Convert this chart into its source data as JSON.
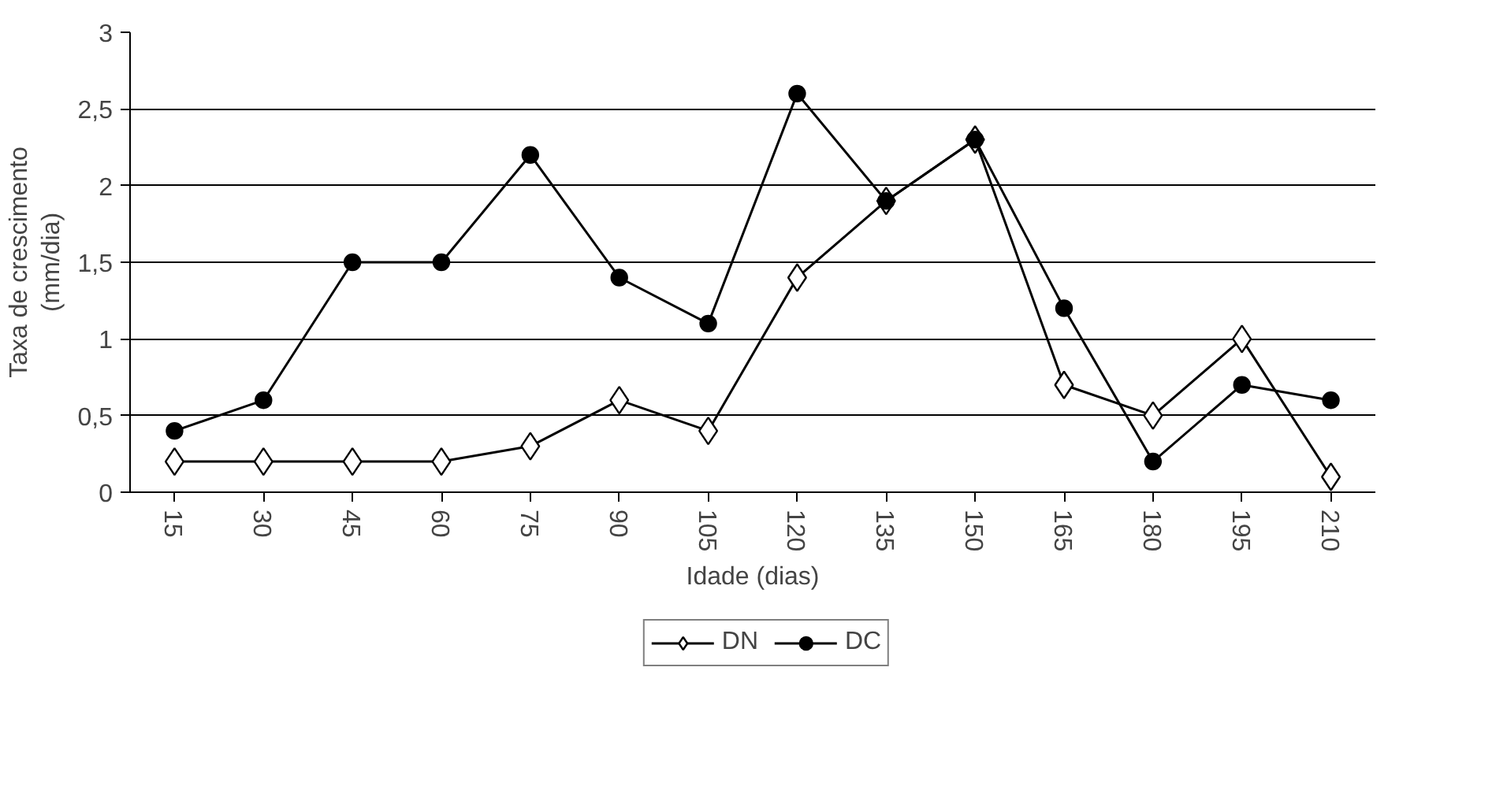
{
  "chart_data": {
    "type": "line",
    "xlabel": "Idade (dias)",
    "ylabel": "Taxa de crescimento\n(mm/dia)",
    "categories": [
      "15",
      "30",
      "45",
      "60",
      "75",
      "90",
      "105",
      "120",
      "135",
      "150",
      "165",
      "180",
      "195",
      "210"
    ],
    "series": [
      {
        "name": "DN",
        "color": "#000000",
        "marker": "diamond",
        "values": [
          0.2,
          0.2,
          0.2,
          0.2,
          0.3,
          0.6,
          0.4,
          1.4,
          1.9,
          2.3,
          0.7,
          0.5,
          1.0,
          0.1
        ]
      },
      {
        "name": "DC",
        "color": "#000000",
        "marker": "circle",
        "values": [
          0.4,
          0.6,
          1.5,
          1.5,
          2.2,
          1.4,
          1.1,
          2.6,
          1.9,
          2.3,
          1.2,
          0.2,
          0.7,
          0.6
        ]
      }
    ],
    "ylim": [
      0,
      3
    ],
    "yticks": [
      0,
      {
        "value": 0.5,
        "label": "0,5"
      },
      1,
      {
        "value": 1.5,
        "label": "1,5"
      },
      2,
      {
        "value": 2.5,
        "label": "2,5"
      },
      3
    ],
    "grid": "y",
    "legend": "bottom",
    "line_style": "solid"
  }
}
